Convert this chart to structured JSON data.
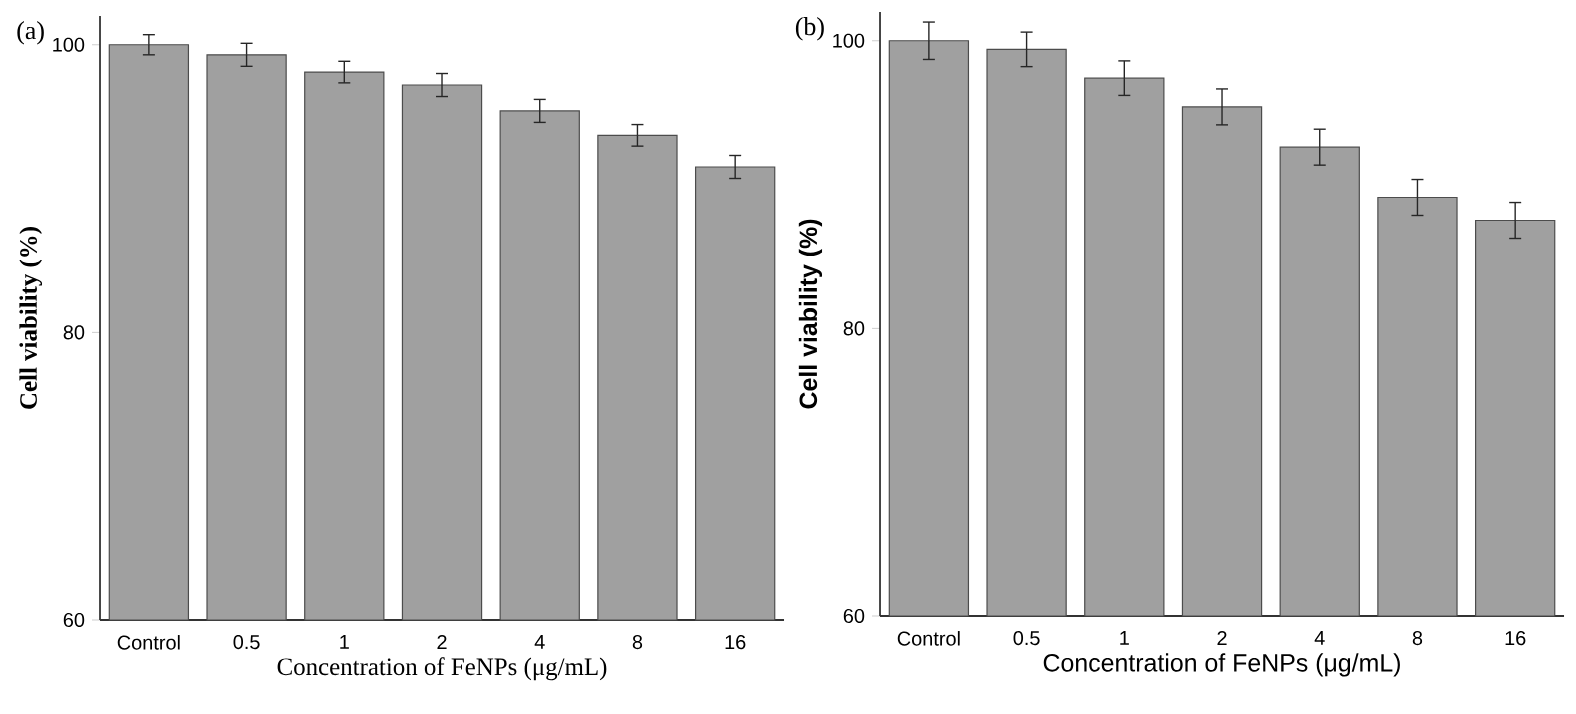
{
  "chart_data": [
    {
      "type": "bar",
      "title": "(a)",
      "xlabel": "Concentration of FeNPs (μg/mL)",
      "ylabel": "Cell viability (%)",
      "categories": [
        "Control",
        "0.5",
        "1",
        "2",
        "4",
        "8",
        "16"
      ],
      "values": [
        100.0,
        99.3,
        98.1,
        97.2,
        95.4,
        93.7,
        91.5
      ],
      "errors": [
        0.7,
        0.8,
        0.75,
        0.8,
        0.8,
        0.75,
        0.8
      ],
      "color": "#a0a0a0",
      "ylim": [
        60,
        102
      ],
      "yticks": [
        60,
        80,
        100
      ]
    },
    {
      "type": "bar",
      "title": "(b)",
      "xlabel": "Concentration of FeNPs (μg/mL)",
      "ylabel": "Cell viability (%)",
      "categories": [
        "Control",
        "0.5",
        "1",
        "2",
        "4",
        "8",
        "16"
      ],
      "values": [
        100.0,
        99.4,
        97.4,
        95.4,
        92.6,
        89.1,
        87.5
      ],
      "errors": [
        1.3,
        1.2,
        1.2,
        1.25,
        1.25,
        1.25,
        1.25
      ],
      "color": "#a0a0a0",
      "ylim": [
        60,
        102
      ],
      "yticks": [
        60,
        80,
        100
      ]
    }
  ]
}
